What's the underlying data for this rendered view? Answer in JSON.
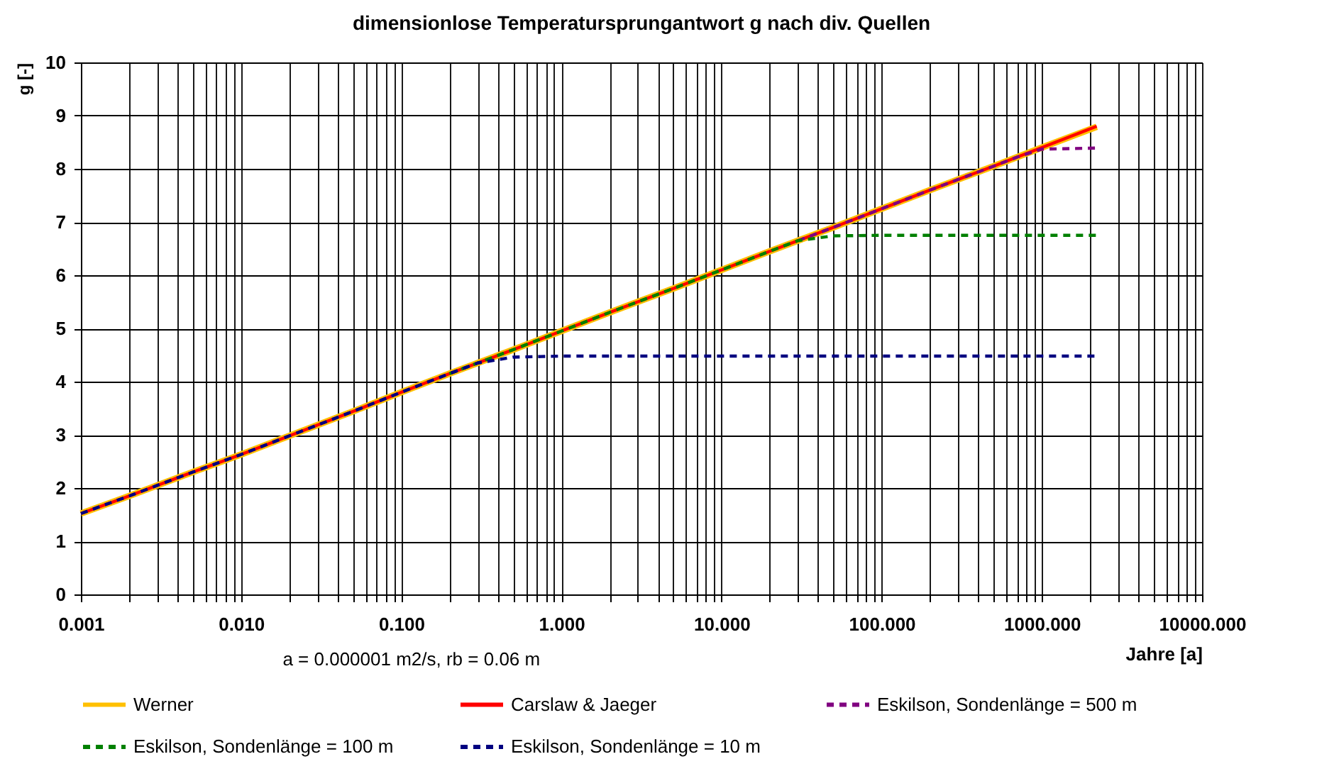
{
  "chart_data": {
    "type": "line",
    "title": "dimensionlose Temperatursprungantwort g nach div. Quellen",
    "xlabel": "Jahre [a]",
    "ylabel": "g [-]",
    "annotations": [
      "a = 0.000001 m2/s, rb = 0.06 m"
    ],
    "log": "x",
    "grid": true,
    "legend": "bottom",
    "xlim": [
      0.001,
      10000
    ],
    "ylim": [
      0,
      10
    ],
    "xticks": [
      0.001,
      {
        "value": 0.002,
        "label": null
      },
      {
        "value": 0.003,
        "label": null
      },
      {
        "value": 0.004,
        "label": null
      },
      {
        "value": 0.005,
        "label": null
      },
      {
        "value": 0.006,
        "label": null
      },
      {
        "value": 0.007,
        "label": null
      },
      {
        "value": 0.008,
        "label": null
      },
      {
        "value": 0.009,
        "label": null
      },
      {
        "value": 0.01,
        "label": "0.010"
      },
      {
        "value": 0.02,
        "label": null
      },
      {
        "value": 0.03,
        "label": null
      },
      {
        "value": 0.04,
        "label": null
      },
      {
        "value": 0.05,
        "label": null
      },
      {
        "value": 0.06,
        "label": null
      },
      {
        "value": 0.07,
        "label": null
      },
      {
        "value": 0.08,
        "label": null
      },
      {
        "value": 0.09,
        "label": null
      },
      {
        "value": 0.1,
        "label": "0.100"
      },
      {
        "value": 0.2,
        "label": null
      },
      {
        "value": 0.3,
        "label": null
      },
      {
        "value": 0.4,
        "label": null
      },
      {
        "value": 0.5,
        "label": null
      },
      {
        "value": 0.6,
        "label": null
      },
      {
        "value": 0.7,
        "label": null
      },
      {
        "value": 0.8,
        "label": null
      },
      {
        "value": 0.9,
        "label": null
      },
      {
        "value": 1,
        "label": "1.000"
      },
      {
        "value": 2,
        "label": null
      },
      {
        "value": 3,
        "label": null
      },
      {
        "value": 4,
        "label": null
      },
      {
        "value": 5,
        "label": null
      },
      {
        "value": 6,
        "label": null
      },
      {
        "value": 7,
        "label": null
      },
      {
        "value": 8,
        "label": null
      },
      {
        "value": 9,
        "label": null
      },
      {
        "value": 10,
        "label": "10.000"
      },
      {
        "value": 20,
        "label": null
      },
      {
        "value": 30,
        "label": null
      },
      {
        "value": 40,
        "label": null
      },
      {
        "value": 50,
        "label": null
      },
      {
        "value": 60,
        "label": null
      },
      {
        "value": 70,
        "label": null
      },
      {
        "value": 80,
        "label": null
      },
      {
        "value": 90,
        "label": null
      },
      {
        "value": 100,
        "label": "100.000"
      },
      {
        "value": 200,
        "label": null
      },
      {
        "value": 300,
        "label": null
      },
      {
        "value": 400,
        "label": null
      },
      {
        "value": 500,
        "label": null
      },
      {
        "value": 600,
        "label": null
      },
      {
        "value": 700,
        "label": null
      },
      {
        "value": 800,
        "label": null
      },
      {
        "value": 900,
        "label": null
      },
      {
        "value": 1000,
        "label": "1000.000"
      },
      {
        "value": 2000,
        "label": null
      },
      {
        "value": 3000,
        "label": null
      },
      {
        "value": 4000,
        "label": null
      },
      {
        "value": 5000,
        "label": null
      },
      {
        "value": 6000,
        "label": null
      },
      {
        "value": 7000,
        "label": null
      },
      {
        "value": 8000,
        "label": null
      },
      {
        "value": 9000,
        "label": null
      },
      {
        "value": 10000,
        "label": "10000.000"
      }
    ],
    "yticks": [
      0,
      1,
      2,
      3,
      4,
      5,
      6,
      7,
      8,
      9,
      10
    ],
    "x": [
      0.001,
      0.002,
      0.005,
      0.01,
      0.02,
      0.05,
      0.1,
      0.2,
      0.3,
      0.5,
      1,
      2,
      3,
      5,
      10,
      20,
      30,
      50,
      100,
      200,
      300,
      500,
      700,
      1000,
      2200
    ],
    "series": [
      {
        "name": "Werner",
        "color": "#ffc000",
        "line_style": "solid",
        "values": [
          1.52,
          1.85,
          2.3,
          2.63,
          2.98,
          3.44,
          3.8,
          4.15,
          4.35,
          4.6,
          4.95,
          5.3,
          5.5,
          5.75,
          6.1,
          6.45,
          6.65,
          6.9,
          7.25,
          7.6,
          7.8,
          8.05,
          8.22,
          8.4,
          8.79
        ]
      },
      {
        "name": "Carslaw & Jaeger",
        "color": "#ff0000",
        "line_style": "solid",
        "values": [
          1.52,
          1.85,
          2.3,
          2.63,
          2.98,
          3.44,
          3.8,
          4.15,
          4.35,
          4.6,
          4.95,
          5.3,
          5.5,
          5.75,
          6.1,
          6.45,
          6.65,
          6.9,
          7.25,
          7.6,
          7.8,
          8.05,
          8.22,
          8.4,
          8.8
        ]
      },
      {
        "name": "Eskilson, Sondenlänge = 500 m",
        "color": "#800080",
        "line_style": "dashed",
        "values": [
          null,
          null,
          null,
          null,
          null,
          null,
          null,
          null,
          null,
          null,
          null,
          null,
          null,
          null,
          null,
          null,
          6.65,
          6.9,
          7.25,
          7.6,
          7.8,
          8.05,
          8.22,
          8.37,
          8.39
        ]
      },
      {
        "name": "Eskilson, Sondenlänge = 100 m",
        "color": "#008000",
        "line_style": "dashed",
        "values": [
          null,
          null,
          null,
          null,
          null,
          null,
          null,
          4.15,
          4.35,
          4.6,
          4.95,
          5.3,
          5.5,
          5.75,
          6.1,
          6.45,
          6.65,
          6.74,
          6.75,
          6.75,
          6.75,
          6.75,
          6.75,
          6.75,
          6.75
        ]
      },
      {
        "name": "Eskilson, Sondenlänge = 10 m",
        "color": "#000080",
        "line_style": "dashed",
        "values": [
          1.52,
          1.85,
          2.3,
          2.63,
          2.98,
          3.44,
          3.8,
          4.15,
          4.35,
          4.46,
          4.48,
          4.48,
          4.48,
          4.48,
          4.48,
          4.48,
          4.48,
          4.48,
          4.48,
          4.48,
          4.48,
          4.48,
          4.48,
          4.48,
          4.48
        ]
      }
    ]
  }
}
